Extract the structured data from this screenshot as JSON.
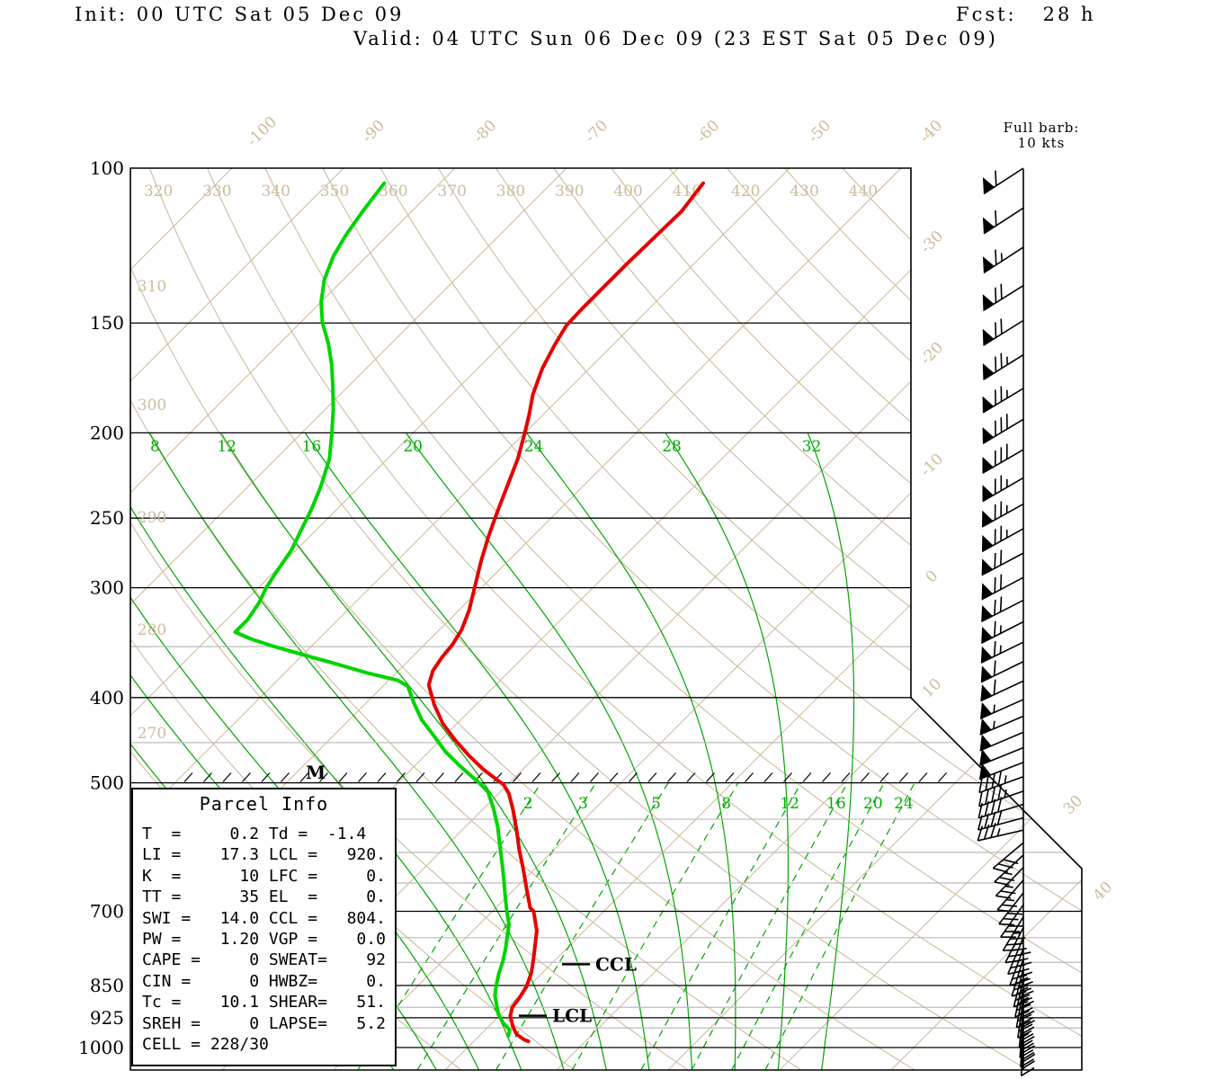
{
  "header": {
    "init": "Init: 00 UTC Sat 05 Dec 09",
    "fcst": "Fcst:   28 h",
    "valid": "Valid: 04 UTC Sun 06 Dec 09 (23 EST Sat 05 Dec 09)"
  },
  "wind_legend": {
    "line1": "Full barb:",
    "line2": "10 kts"
  },
  "parcel_info": {
    "title": "Parcel Info",
    "rows": [
      "T  =     0.2 Td =  -1.4",
      "LI =    17.3 LCL =   920.",
      "K  =      10 LFC =     0.",
      "TT =      35 EL  =     0.",
      "SWI =   14.0 CCL =   804.",
      "PW =    1.20 VGP =    0.0",
      "CAPE =     0 SWEAT=    92",
      "CIN =      0 HWBZ=     0.",
      "Tc =    10.1 SHEAR=   51.",
      "SREH =     0 LAPSE=   5.2",
      "CELL = 228/30"
    ]
  },
  "markers": {
    "m_label": "M",
    "ccl_label": "CCL",
    "lcl_label": "LCL"
  },
  "colors": {
    "tan": "#cdbc9b",
    "green_lines": "#00a400",
    "green_curve": "#00d400",
    "red_curve": "#e60000",
    "gray_minor": "#bbbbbb",
    "black": "#000000"
  },
  "chart_data": {
    "type": "skewt_log_p_sounding",
    "pressure_axis_hpa": [
      100,
      150,
      200,
      250,
      300,
      400,
      500,
      700,
      850,
      925,
      1000
    ],
    "pressure_minor_hpa": [
      350,
      450,
      550,
      600,
      650,
      750,
      800,
      900,
      950
    ],
    "isotherms_c": {
      "min": -120,
      "max": 40,
      "step": 10
    },
    "isotherm_labels_top_c": [
      -100,
      -90,
      -80,
      -70,
      -60,
      -50,
      -40
    ],
    "isotherm_labels_right_c": [
      -30,
      -20,
      -10,
      0,
      10
    ],
    "isotherm_labels_corner_c": [
      30,
      40
    ],
    "dry_adiabats_k": {
      "min": 270,
      "max": 440,
      "step": 10
    },
    "dry_adiabat_labels_top_k": [
      320,
      330,
      340,
      350,
      360,
      370,
      380,
      390,
      400,
      410,
      420,
      430,
      440
    ],
    "dry_adiabat_labels_left_k": [
      310,
      300,
      290,
      280,
      270
    ],
    "moist_adiabats_c": [
      -8,
      -4,
      0,
      4,
      8,
      12,
      16,
      20,
      24,
      28,
      32
    ],
    "moist_adiabat_labels_c": [
      8,
      12,
      16,
      20,
      24,
      28,
      32
    ],
    "mixing_ratio_gkg": [
      2,
      3,
      5,
      8,
      12,
      16,
      20,
      24
    ],
    "lcl_hpa": 920,
    "ccl_hpa": 804,
    "temperature_profile_p_c": [
      [
        104,
        -56.4
      ],
      [
        112,
        -55.8
      ],
      [
        119,
        -55.9
      ],
      [
        128,
        -56.0
      ],
      [
        136,
        -56.0
      ],
      [
        144,
        -56.0
      ],
      [
        151,
        -55.9
      ],
      [
        159,
        -55.2
      ],
      [
        169,
        -54.2
      ],
      [
        181,
        -52.7
      ],
      [
        191,
        -51.2
      ],
      [
        200,
        -50.0
      ],
      [
        214,
        -48.3
      ],
      [
        231,
        -46.7
      ],
      [
        248,
        -45.2
      ],
      [
        263,
        -43.9
      ],
      [
        280,
        -42.4
      ],
      [
        299,
        -40.7
      ],
      [
        318,
        -39.1
      ],
      [
        335,
        -38.0
      ],
      [
        348,
        -37.5
      ],
      [
        360,
        -37.3
      ],
      [
        373,
        -36.9
      ],
      [
        387,
        -36.0
      ],
      [
        407,
        -33.8
      ],
      [
        428,
        -31.3
      ],
      [
        447,
        -28.7
      ],
      [
        466,
        -26.0
      ],
      [
        483,
        -23.5
      ],
      [
        496,
        -21.4
      ],
      [
        502,
        -20.4
      ],
      [
        514,
        -19.1
      ],
      [
        536,
        -17.3
      ],
      [
        566,
        -15.1
      ],
      [
        596,
        -13.1
      ],
      [
        627,
        -11.0
      ],
      [
        659,
        -9.0
      ],
      [
        694,
        -6.9
      ],
      [
        700,
        -6.3
      ],
      [
        736,
        -4.3
      ],
      [
        763,
        -3.2
      ],
      [
        794,
        -2.0
      ],
      [
        822,
        -1.0
      ],
      [
        852,
        -0.2
      ],
      [
        879,
        0.2
      ],
      [
        900,
        0.4
      ],
      [
        921,
        1.0
      ],
      [
        947,
        2.2
      ],
      [
        966,
        3.2
      ],
      [
        980,
        4.4
      ],
      [
        984,
        4.9
      ]
    ],
    "dewpoint_profile_p_c": [
      [
        104,
        -85.0
      ],
      [
        112,
        -84.4
      ],
      [
        119,
        -83.8
      ],
      [
        126,
        -83.0
      ],
      [
        134,
        -81.7
      ],
      [
        142,
        -80.0
      ],
      [
        150,
        -78.0
      ],
      [
        158,
        -75.7
      ],
      [
        167,
        -73.5
      ],
      [
        177,
        -71.4
      ],
      [
        188,
        -69.3
      ],
      [
        200,
        -67.3
      ],
      [
        214,
        -65.2
      ],
      [
        230,
        -63.5
      ],
      [
        244,
        -62.3
      ],
      [
        257,
        -61.4
      ],
      [
        272,
        -60.4
      ],
      [
        288,
        -59.8
      ],
      [
        300,
        -59.3
      ],
      [
        312,
        -58.6
      ],
      [
        326,
        -58.1
      ],
      [
        337,
        -58.1
      ],
      [
        343,
        -56.1
      ],
      [
        350,
        -53.3
      ],
      [
        358,
        -49.8
      ],
      [
        366,
        -46.3
      ],
      [
        375,
        -42.6
      ],
      [
        382,
        -39.3
      ],
      [
        388,
        -37.8
      ],
      [
        405,
        -35.8
      ],
      [
        424,
        -33.5
      ],
      [
        442,
        -31.0
      ],
      [
        461,
        -28.5
      ],
      [
        478,
        -26.0
      ],
      [
        492,
        -23.9
      ],
      [
        500,
        -22.7
      ],
      [
        512,
        -21.1
      ],
      [
        535,
        -19.1
      ],
      [
        561,
        -17.1
      ],
      [
        585,
        -15.5
      ],
      [
        613,
        -13.7
      ],
      [
        641,
        -12.0
      ],
      [
        671,
        -10.3
      ],
      [
        700,
        -8.7
      ],
      [
        725,
        -7.3
      ],
      [
        748,
        -6.4
      ],
      [
        771,
        -5.5
      ],
      [
        797,
        -4.6
      ],
      [
        825,
        -3.8
      ],
      [
        850,
        -3.0
      ],
      [
        873,
        -2.2
      ],
      [
        897,
        -1.1
      ],
      [
        917,
        -0.2
      ],
      [
        938,
        1.0
      ],
      [
        955,
        2.2
      ],
      [
        970,
        2.6
      ]
    ],
    "wind_barbs": [
      {
        "p": 100,
        "kt": 60,
        "ang": 147,
        "s": 1
      },
      {
        "p": 111,
        "kt": 60,
        "ang": 147,
        "s": 1
      },
      {
        "p": 123,
        "kt": 65,
        "ang": 147,
        "s": 1
      },
      {
        "p": 136,
        "kt": 70,
        "ang": 148,
        "s": 1
      },
      {
        "p": 149,
        "kt": 70,
        "ang": 148,
        "s": 1
      },
      {
        "p": 163,
        "kt": 75,
        "ang": 148,
        "s": 1
      },
      {
        "p": 178,
        "kt": 75,
        "ang": 149,
        "s": 1
      },
      {
        "p": 193,
        "kt": 80,
        "ang": 149,
        "s": 1
      },
      {
        "p": 209,
        "kt": 80,
        "ang": 150,
        "s": 1
      },
      {
        "p": 225,
        "kt": 75,
        "ang": 150,
        "s": 1
      },
      {
        "p": 241,
        "kt": 75,
        "ang": 151,
        "s": 1
      },
      {
        "p": 257,
        "kt": 75,
        "ang": 151,
        "s": 1
      },
      {
        "p": 274,
        "kt": 70,
        "ang": 152,
        "s": 1
      },
      {
        "p": 292,
        "kt": 70,
        "ang": 152,
        "s": 1
      },
      {
        "p": 310,
        "kt": 70,
        "ang": 153,
        "s": 1
      },
      {
        "p": 328,
        "kt": 65,
        "ang": 153,
        "s": 1
      },
      {
        "p": 346,
        "kt": 65,
        "ang": 154,
        "s": 1
      },
      {
        "p": 364,
        "kt": 60,
        "ang": 154,
        "s": 1
      },
      {
        "p": 383,
        "kt": 60,
        "ang": 155,
        "s": 1
      },
      {
        "p": 402,
        "kt": 55,
        "ang": 156,
        "s": 1
      },
      {
        "p": 420,
        "kt": 55,
        "ang": 157,
        "s": 1
      },
      {
        "p": 438,
        "kt": 50,
        "ang": 157,
        "s": 1
      },
      {
        "p": 456,
        "kt": 50,
        "ang": 158,
        "s": 1
      },
      {
        "p": 474,
        "kt": 50,
        "ang": 159,
        "s": 1
      },
      {
        "p": 492,
        "kt": 45,
        "ang": 160,
        "s": 1
      },
      {
        "p": 511,
        "kt": 45,
        "ang": 161,
        "s": 1
      },
      {
        "p": 529,
        "kt": 40,
        "ang": 163,
        "s": 1
      },
      {
        "p": 548,
        "kt": 40,
        "ang": 165,
        "s": 1
      },
      {
        "p": 566,
        "kt": 35,
        "ang": 167,
        "s": 1
      },
      {
        "p": 585,
        "kt": 30,
        "ang": 140,
        "s": -1
      },
      {
        "p": 604,
        "kt": 25,
        "ang": 137,
        "s": -1
      },
      {
        "p": 624,
        "kt": 25,
        "ang": 134,
        "s": -1
      },
      {
        "p": 645,
        "kt": 25,
        "ang": 131,
        "s": -1
      },
      {
        "p": 667,
        "kt": 30,
        "ang": 128,
        "s": -1
      },
      {
        "p": 688,
        "kt": 30,
        "ang": 125,
        "s": -1
      },
      {
        "p": 710,
        "kt": 35,
        "ang": 121,
        "s": -1
      },
      {
        "p": 730,
        "kt": 35,
        "ang": 117,
        "s": -1
      },
      {
        "p": 750,
        "kt": 40,
        "ang": 113,
        "s": -1
      },
      {
        "p": 771,
        "kt": 40,
        "ang": 110,
        "s": -1
      },
      {
        "p": 792,
        "kt": 40,
        "ang": 107,
        "s": -1
      },
      {
        "p": 813,
        "kt": 45,
        "ang": 104,
        "s": -1
      },
      {
        "p": 834,
        "kt": 45,
        "ang": 102,
        "s": -1
      },
      {
        "p": 857,
        "kt": 45,
        "ang": 100,
        "s": -1
      },
      {
        "p": 880,
        "kt": 40,
        "ang": 98,
        "s": -1
      },
      {
        "p": 903,
        "kt": 40,
        "ang": 96,
        "s": -1
      },
      {
        "p": 926,
        "kt": 35,
        "ang": 95,
        "s": -1
      },
      {
        "p": 949,
        "kt": 35,
        "ang": 94,
        "s": -1
      },
      {
        "p": 971,
        "kt": 30,
        "ang": 93,
        "s": -1
      }
    ],
    "wind_barb_full_barb_kt": 10
  }
}
